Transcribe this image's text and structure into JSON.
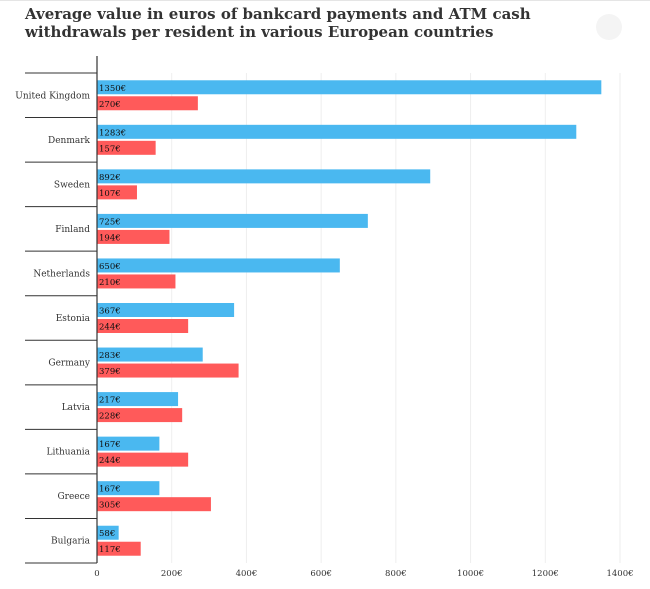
{
  "title": "Average value in euros of bankcard payments and ATM cash withdrawals per resident in various European countries",
  "colors": {
    "card": "#4ab8f0",
    "atm": "#ff5a5a",
    "grid": "#eeeeee",
    "axis": "#333333"
  },
  "chart_data": {
    "type": "bar",
    "orientation": "horizontal",
    "categories": [
      "United Kingdom",
      "Denmark",
      "Sweden",
      "Finland",
      "Netherlands",
      "Estonia",
      "Germany",
      "Latvia",
      "Lithuania",
      "Greece",
      "Bulgaria"
    ],
    "series": [
      {
        "values": [
          1350,
          1283,
          892,
          725,
          650,
          367,
          283,
          217,
          167,
          167,
          58
        ],
        "labels": [
          "1350€",
          "1283€",
          "892€",
          "725€",
          "650€",
          "367€",
          "283€",
          "217€",
          "167€",
          "167€",
          "58€"
        ],
        "color": "#4ab8f0"
      },
      {
        "values": [
          270,
          157,
          107,
          194,
          210,
          244,
          379,
          228,
          244,
          305,
          117
        ],
        "labels": [
          "270€",
          "157€",
          "107€",
          "194€",
          "210€",
          "244€",
          "379€",
          "228€",
          "244€",
          "305€",
          "117€"
        ],
        "color": "#ff5a5a"
      }
    ],
    "xlim": [
      0,
      1400
    ],
    "xticks": [
      0,
      200,
      400,
      600,
      800,
      1000,
      1200,
      1400
    ],
    "xtick_labels": [
      "0",
      "200€",
      "400€",
      "600€",
      "800€",
      "1000€",
      "1200€",
      "1400€"
    ],
    "grid": true
  }
}
